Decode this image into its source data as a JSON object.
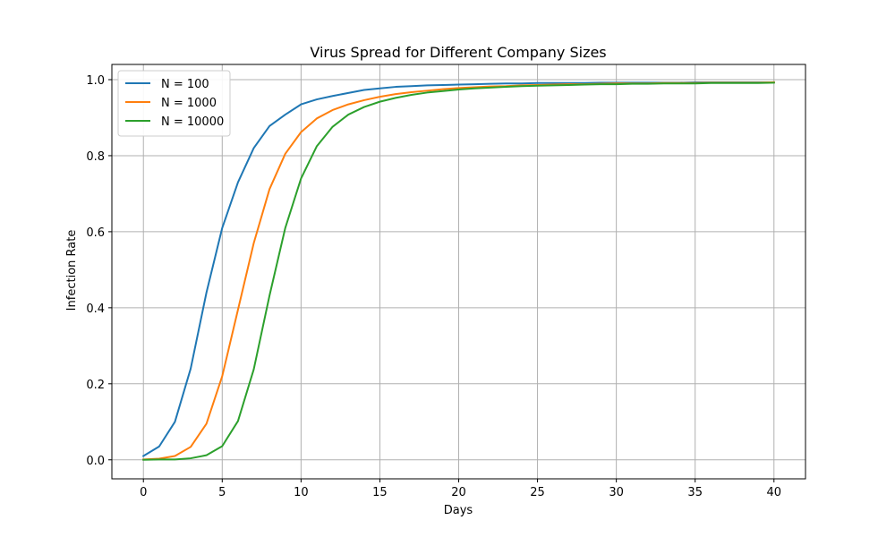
{
  "chart_data": {
    "type": "line",
    "title": "Virus Spread for Different Company Sizes",
    "xlabel": "Days",
    "ylabel": "Infection Rate",
    "xlim": [
      -2,
      42
    ],
    "ylim": [
      -0.05,
      1.04
    ],
    "xticks": [
      0,
      5,
      10,
      15,
      20,
      25,
      30,
      35,
      40
    ],
    "yticks": [
      0.0,
      0.2,
      0.4,
      0.6,
      0.8,
      1.0
    ],
    "xtick_labels": [
      "0",
      "5",
      "10",
      "15",
      "20",
      "25",
      "30",
      "35",
      "40"
    ],
    "ytick_labels": [
      "0.0",
      "0.2",
      "0.4",
      "0.6",
      "0.8",
      "1.0"
    ],
    "grid": true,
    "legend_position": "upper-left",
    "x": [
      0,
      1,
      2,
      3,
      4,
      5,
      6,
      7,
      8,
      9,
      10,
      11,
      12,
      13,
      14,
      15,
      16,
      17,
      18,
      19,
      20,
      21,
      22,
      23,
      24,
      25,
      26,
      27,
      28,
      29,
      30,
      31,
      32,
      33,
      34,
      35,
      36,
      37,
      38,
      39,
      40
    ],
    "series": [
      {
        "name": "N = 100",
        "color": "#1f77b4",
        "values": [
          0.01,
          0.035,
          0.1,
          0.24,
          0.44,
          0.61,
          0.73,
          0.82,
          0.878,
          0.908,
          0.935,
          0.948,
          0.957,
          0.965,
          0.973,
          0.977,
          0.981,
          0.983,
          0.985,
          0.986,
          0.987,
          0.988,
          0.989,
          0.99,
          0.99,
          0.991,
          0.991,
          0.991,
          0.991,
          0.992,
          0.992,
          0.992,
          0.992,
          0.992,
          0.992,
          0.993,
          0.993,
          0.993,
          0.993,
          0.993,
          0.993
        ]
      },
      {
        "name": "N = 1000",
        "color": "#ff7f0e",
        "values": [
          0.001,
          0.003,
          0.01,
          0.034,
          0.095,
          0.22,
          0.395,
          0.57,
          0.712,
          0.805,
          0.862,
          0.898,
          0.92,
          0.935,
          0.946,
          0.955,
          0.962,
          0.967,
          0.971,
          0.975,
          0.978,
          0.98,
          0.982,
          0.983,
          0.985,
          0.986,
          0.987,
          0.988,
          0.988,
          0.989,
          0.99,
          0.99,
          0.99,
          0.991,
          0.991,
          0.991,
          0.992,
          0.992,
          0.992,
          0.992,
          0.993
        ]
      },
      {
        "name": "N = 10000",
        "color": "#2ca02c",
        "values": [
          0.0,
          0.001,
          0.001,
          0.004,
          0.012,
          0.036,
          0.102,
          0.238,
          0.432,
          0.61,
          0.74,
          0.825,
          0.876,
          0.908,
          0.928,
          0.942,
          0.952,
          0.96,
          0.966,
          0.97,
          0.974,
          0.977,
          0.979,
          0.981,
          0.983,
          0.984,
          0.985,
          0.986,
          0.987,
          0.988,
          0.988,
          0.989,
          0.989,
          0.99,
          0.99,
          0.99,
          0.991,
          0.991,
          0.991,
          0.991,
          0.992
        ]
      }
    ]
  }
}
